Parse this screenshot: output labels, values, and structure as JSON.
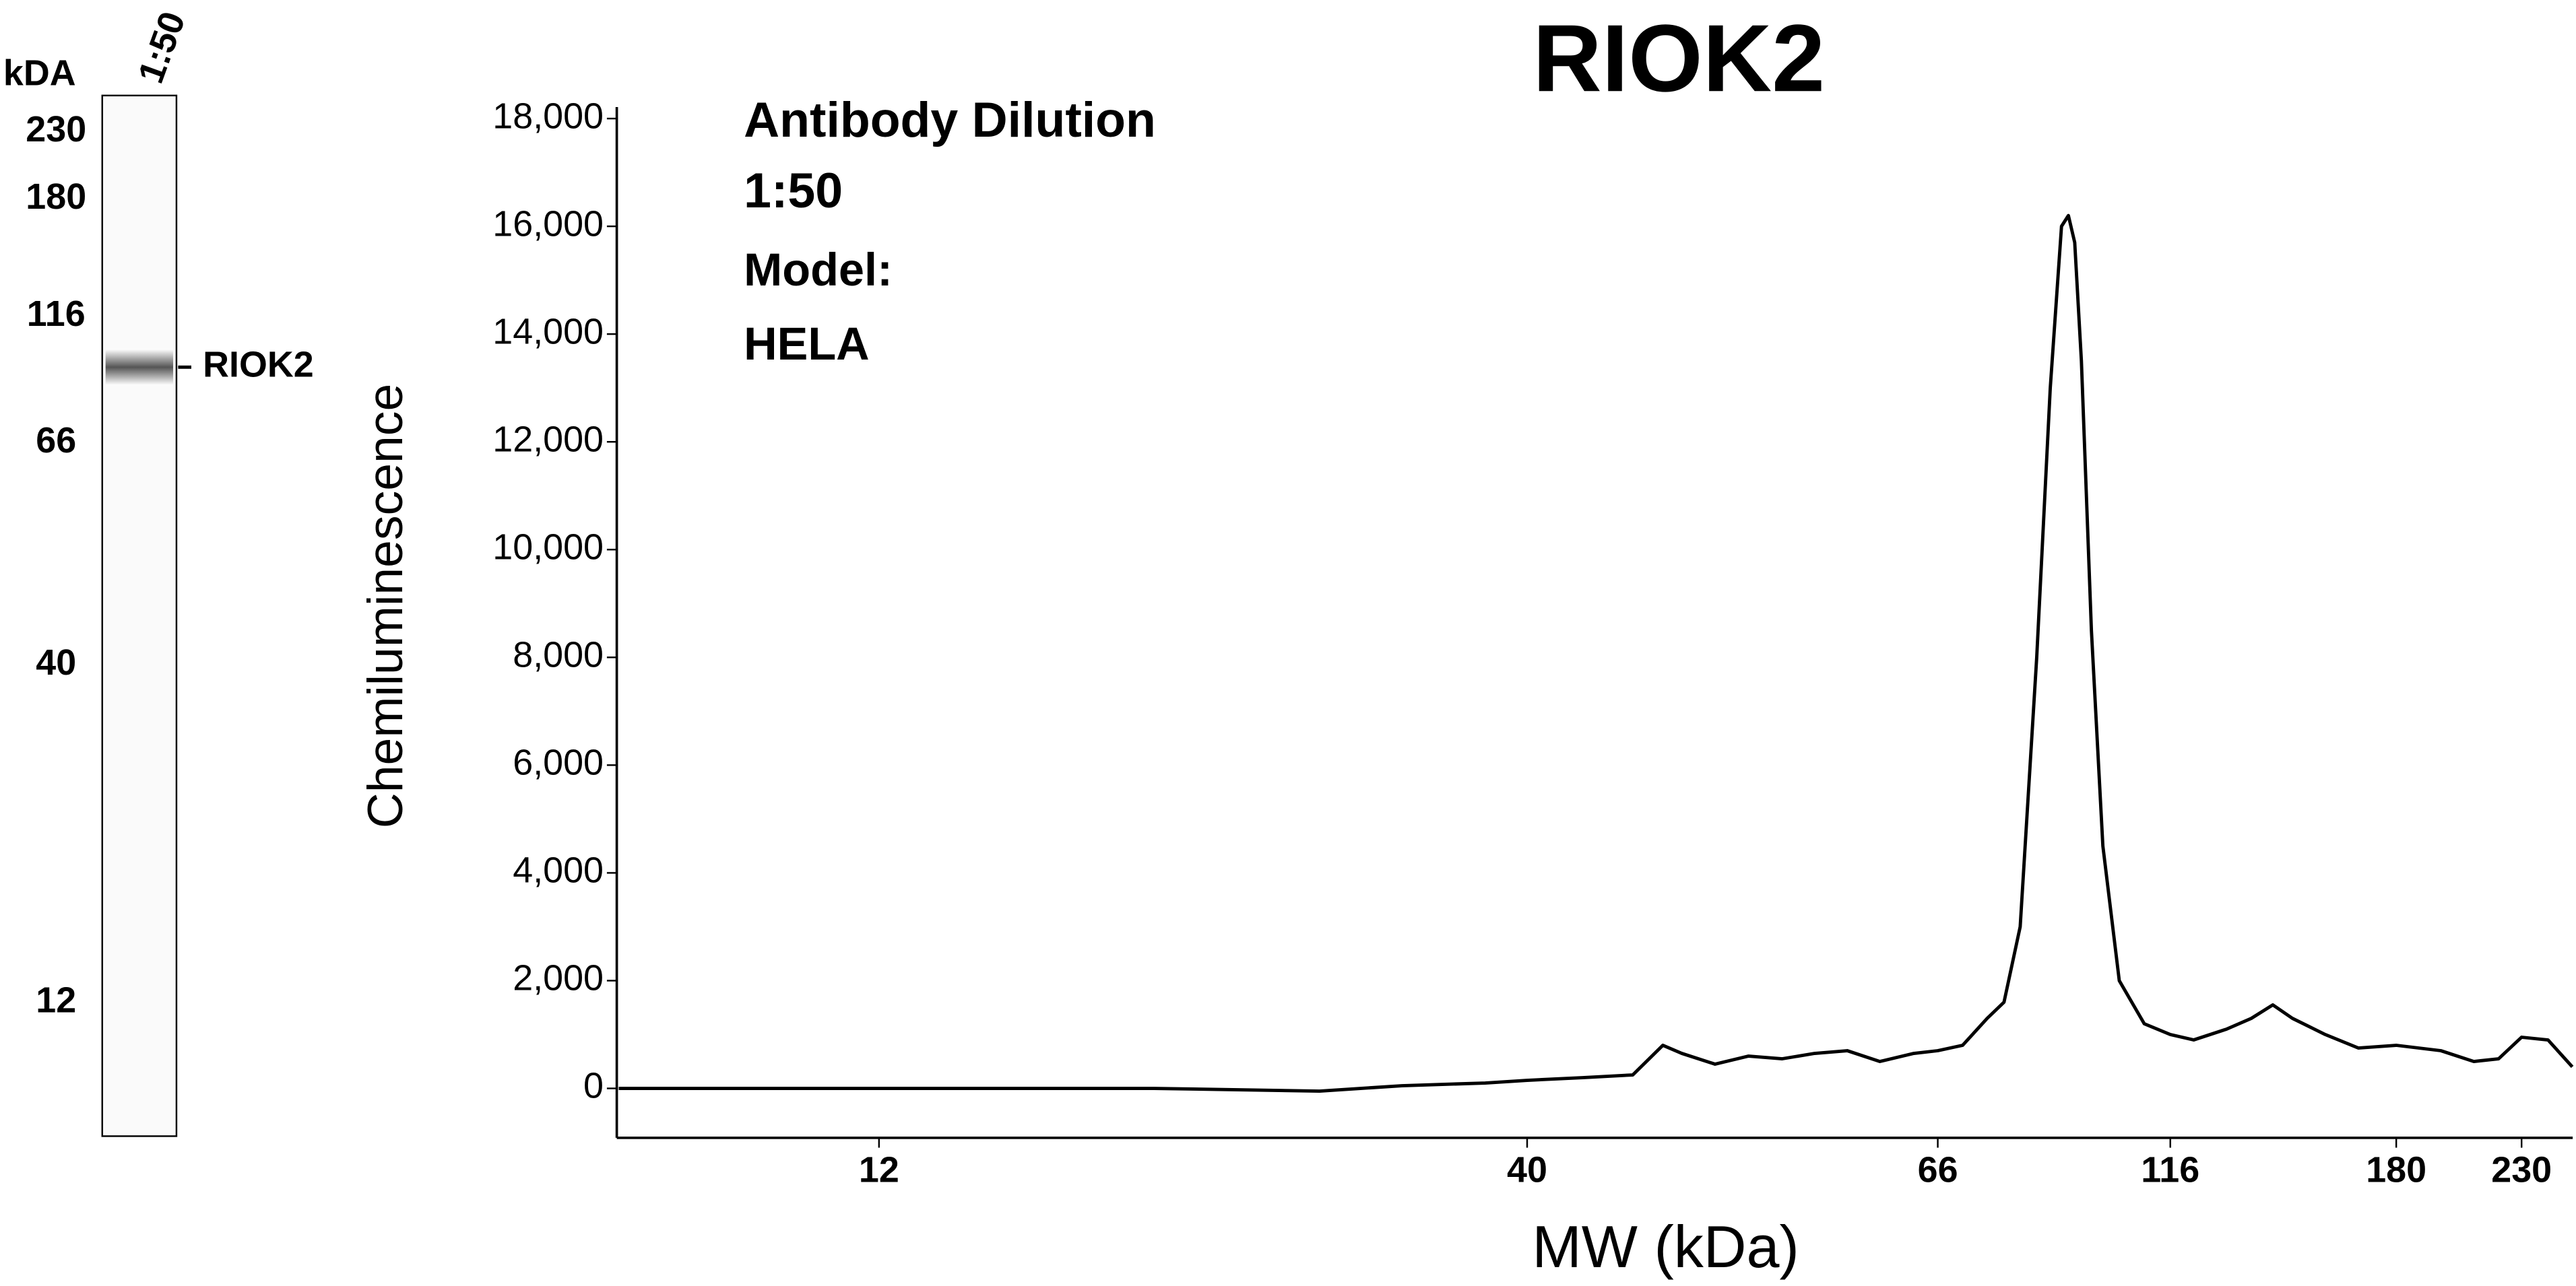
{
  "chart_data": {
    "type": "line",
    "title": "RIOK2",
    "annotations": [
      "Antibody Dilution",
      "1:50",
      "Model:",
      "HELA"
    ],
    "xlabel": "MW (kDa)",
    "ylabel": "Chemiluminescence",
    "xlim": [
      7.4,
      254
    ],
    "xticks": [
      12,
      40,
      66,
      116,
      180,
      230
    ],
    "ylim": [
      -900,
      18000
    ],
    "yticks": [
      0,
      {
        "value": 2000,
        "label": "2,000"
      },
      {
        "value": 4000,
        "label": "4,000"
      },
      {
        "value": 6000,
        "label": "6,000"
      },
      {
        "value": 8000,
        "label": "8,000"
      },
      {
        "value": 10000,
        "label": "10,000"
      },
      {
        "value": 12000,
        "label": "12,000"
      },
      {
        "value": 14000,
        "label": "14,000"
      },
      {
        "value": 16000,
        "label": "16,000"
      },
      {
        "value": 18000,
        "label": "18,000"
      }
    ],
    "series": [
      {
        "color": "#000000",
        "x": [
          7.4,
          9.3,
          12,
          14.7,
          20.0,
          27.2,
          31.7,
          37.0,
          40,
          42.8,
          45.5,
          47.2,
          48.3,
          50.3,
          52.4,
          54.6,
          56.8,
          59.1,
          61.5,
          64.1,
          66,
          70.1,
          74.4,
          77.5,
          80.6,
          83.9,
          86.7,
          89.1,
          90.6,
          92.0,
          93.5,
          95.8,
          98.5,
          102.5,
          108.9,
          116,
          121.4,
          129.4,
          135.8,
          141.6,
          147.1,
          156.8,
          167.2,
          180,
          196.4,
          209.5,
          219.9,
          230,
          242.2,
          254
        ],
        "values": [
          0,
          0,
          0,
          0,
          0,
          -50,
          50,
          100,
          150,
          200,
          250,
          800,
          650,
          450,
          600,
          550,
          650,
          700,
          500,
          650,
          700,
          800,
          1300,
          1600,
          3000,
          8000,
          13000,
          16000,
          16200,
          15700,
          13500,
          8500,
          4500,
          2000,
          1200,
          1000,
          900,
          1100,
          1300,
          1550,
          1300,
          1000,
          750,
          800,
          700,
          500,
          550,
          950,
          900,
          400
        ]
      }
    ]
  },
  "lane": {
    "unit": "kDA",
    "dilution": "1:50",
    "markers": [
      "230",
      "180",
      "116",
      "66",
      "40",
      "12"
    ],
    "band_label": "RIOK2"
  }
}
